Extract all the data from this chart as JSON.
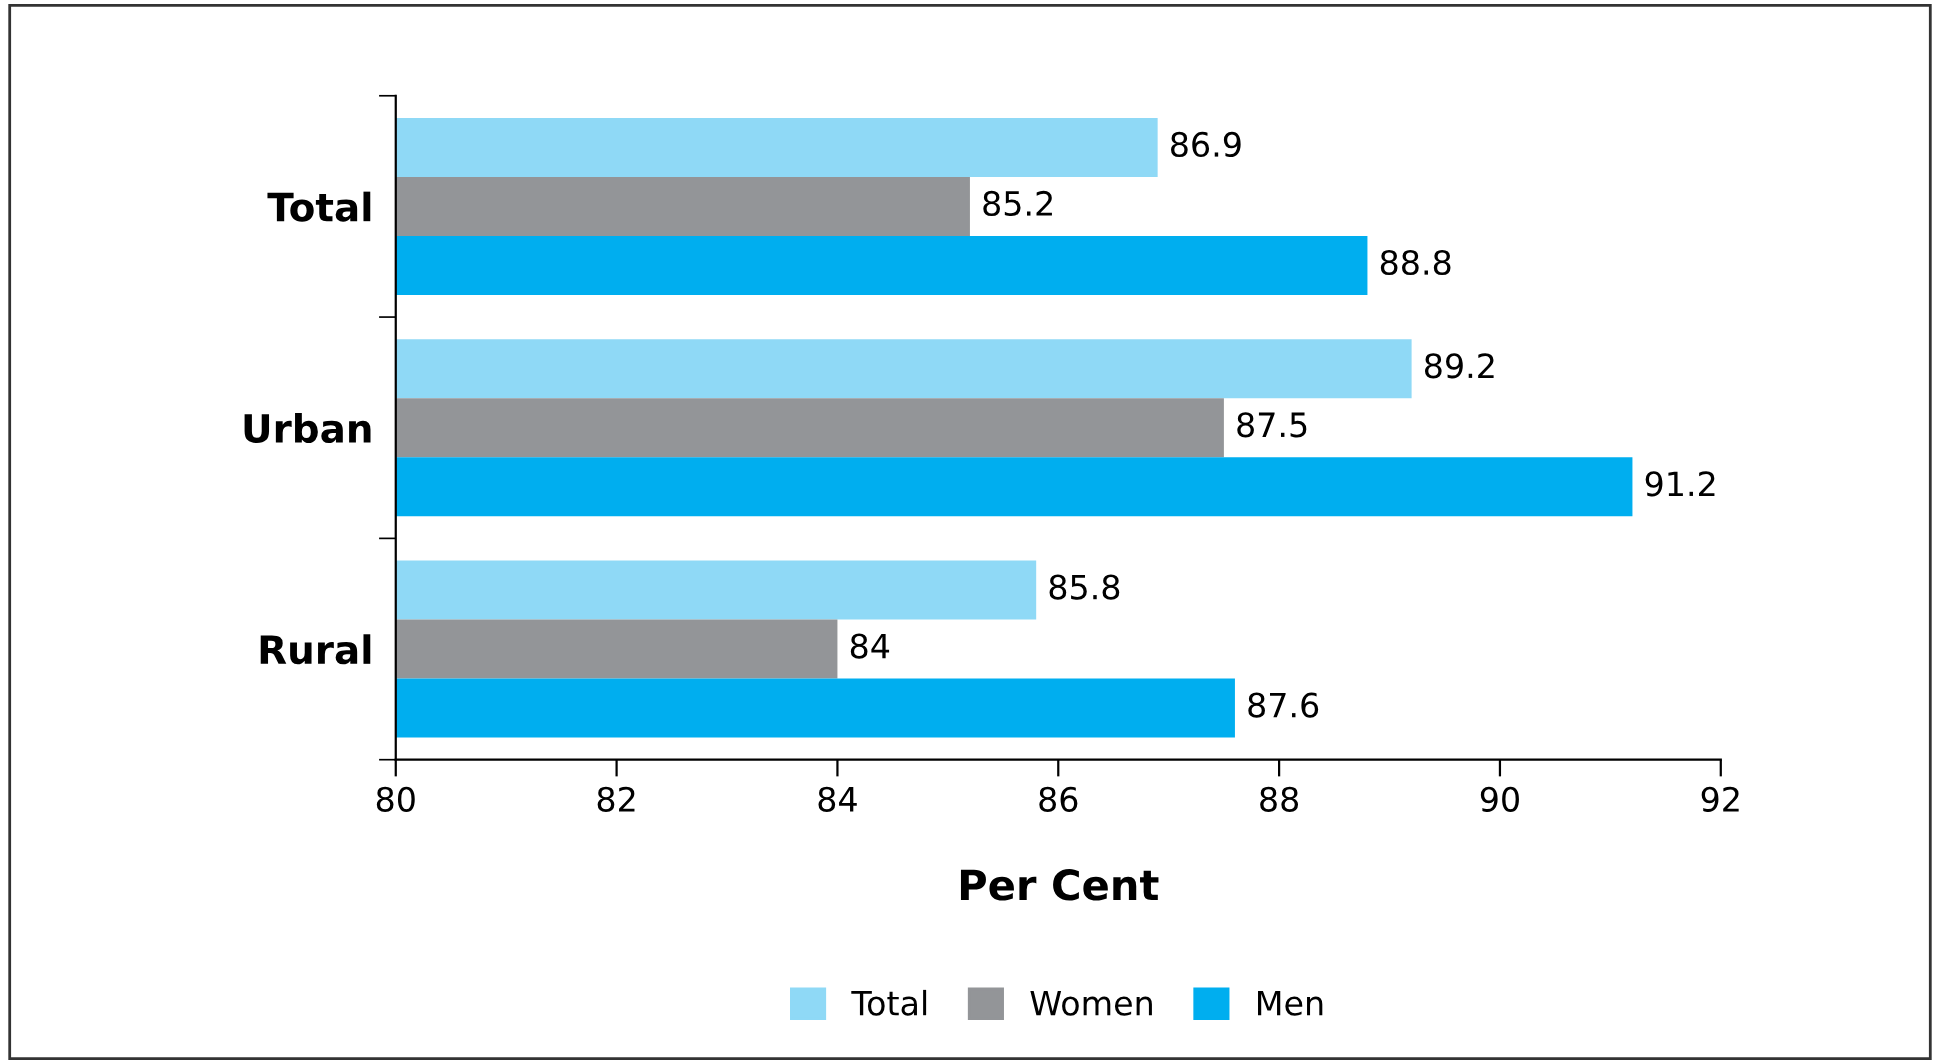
{
  "chart_data": {
    "type": "bar",
    "orientation": "horizontal",
    "xlabel": "Per Cent",
    "categories": [
      "Total",
      "Urban",
      "Rural"
    ],
    "series": [
      {
        "name": "Total",
        "color": "#8fd9f6",
        "values": [
          86.9,
          89.2,
          85.8
        ]
      },
      {
        "name": "Women",
        "color": "#939598",
        "values": [
          85.2,
          87.5,
          84
        ]
      },
      {
        "name": "Men",
        "color": "#00aeef",
        "values": [
          88.8,
          91.2,
          87.6
        ]
      }
    ],
    "xlim": [
      80,
      92
    ],
    "xticks": [
      80,
      82,
      84,
      86,
      88,
      90,
      92
    ],
    "grid": false,
    "legend": "bottom",
    "data_labels": true
  }
}
